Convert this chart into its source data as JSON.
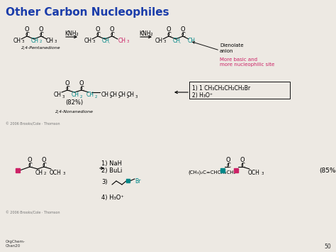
{
  "title": "Other Carbon Nucleophiles",
  "title_color": "#1a3caa",
  "bg_color": "#ede9e3",
  "slide_number": "50",
  "footer_left": "OrgChem-\nChan20",
  "copyright": "© 2006 Brooks/Cole · Thomson",
  "pink_color": "#cc2266",
  "teal_color": "#008888",
  "dark_color": "#111111",
  "label_pentanedione": "2,4-Pentanedione",
  "label_nonanedione": "2,4-Nonanedione",
  "label_dienolate": "Dienolate\nanion",
  "label_82": "(82%)",
  "label_85": "(85%)",
  "knh2": "KNH₂"
}
